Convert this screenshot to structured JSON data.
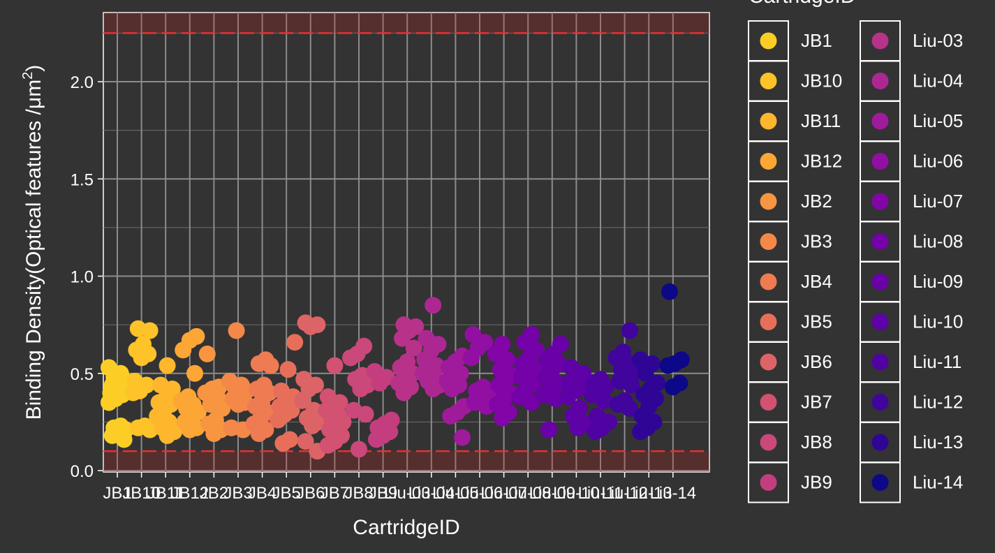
{
  "chart_data": {
    "type": "scatter",
    "xlabel": "CartridgeID",
    "ylabel_main": "Binding Density(Optical features /",
    "ylabel_unit": "μm",
    "ylabel_sup": "2",
    "ylabel_close": ")",
    "ylim": [
      0,
      2.35
    ],
    "yticks": [
      0.0,
      0.5,
      1.0,
      1.5,
      2.0
    ],
    "ytick_labels": [
      "0.0",
      "0.5",
      "1.0",
      "1.5",
      "2.0"
    ],
    "grid": true,
    "thresholds": {
      "lower": 0.1,
      "upper": 2.25
    },
    "legend_title": "CartridgeID",
    "legend_position": "right",
    "categories": [
      "JB1",
      "JB10",
      "JB11",
      "JB12",
      "JB2",
      "JB3",
      "JB4",
      "JB5",
      "JB6",
      "JB7",
      "JB8",
      "JB9",
      "Liu-03",
      "Liu-04",
      "Liu-05",
      "Liu-06",
      "Liu-07",
      "Liu-08",
      "Liu-09",
      "Liu-10",
      "Liu-11",
      "Liu-12",
      "Liu-13",
      "Liu-14"
    ],
    "colors": [
      "#FCCE25",
      "#FDC328",
      "#FEB72D",
      "#FCA636",
      "#F89540",
      "#F48849",
      "#EE7B51",
      "#E76F5A",
      "#DD6466",
      "#D35171",
      "#CA487A",
      "#C43E7F",
      "#B83289",
      "#AD2793",
      "#A01A9C",
      "#920FA3",
      "#8305A7",
      "#7501A8",
      "#6A00A8",
      "#5E01A6",
      "#5002A2",
      "#41049D",
      "#2F0596",
      "#0D0887"
    ],
    "series": [
      {
        "name": "JB1",
        "values": [
          0.53,
          0.5,
          0.48,
          0.46,
          0.45,
          0.44,
          0.42,
          0.41,
          0.4,
          0.39,
          0.37,
          0.35,
          0.23,
          0.22,
          0.21,
          0.2,
          0.18,
          0.16
        ]
      },
      {
        "name": "JB10",
        "values": [
          0.73,
          0.72,
          0.65,
          0.62,
          0.6,
          0.58,
          0.46,
          0.44,
          0.41,
          0.4,
          0.23,
          0.22,
          0.21
        ]
      },
      {
        "name": "JB11",
        "values": [
          0.54,
          0.44,
          0.42,
          0.37,
          0.35,
          0.34,
          0.31,
          0.28,
          0.25,
          0.22,
          0.2,
          0.18
        ]
      },
      {
        "name": "JB12",
        "values": [
          0.69,
          0.67,
          0.62,
          0.5,
          0.38,
          0.36,
          0.34,
          0.32,
          0.3,
          0.28,
          0.25,
          0.22,
          0.21
        ]
      },
      {
        "name": "JB2",
        "values": [
          0.6,
          0.43,
          0.42,
          0.4,
          0.38,
          0.34,
          0.32,
          0.26,
          0.24,
          0.21,
          0.19
        ]
      },
      {
        "name": "JB3",
        "values": [
          0.72,
          0.46,
          0.44,
          0.43,
          0.41,
          0.39,
          0.37,
          0.35,
          0.34,
          0.22,
          0.21
        ]
      },
      {
        "name": "JB4",
        "values": [
          0.57,
          0.55,
          0.54,
          0.44,
          0.42,
          0.4,
          0.36,
          0.33,
          0.3,
          0.27,
          0.24,
          0.21,
          0.19
        ]
      },
      {
        "name": "JB5",
        "values": [
          0.66,
          0.52,
          0.41,
          0.38,
          0.35,
          0.33,
          0.31,
          0.29,
          0.26,
          0.16,
          0.14
        ]
      },
      {
        "name": "JB6",
        "values": [
          0.76,
          0.75,
          0.74,
          0.47,
          0.44,
          0.42,
          0.36,
          0.31,
          0.27,
          0.25,
          0.23,
          0.15,
          0.1
        ]
      },
      {
        "name": "JB7",
        "values": [
          0.54,
          0.38,
          0.35,
          0.33,
          0.31,
          0.29,
          0.27,
          0.25,
          0.23,
          0.21,
          0.18,
          0.15,
          0.13
        ]
      },
      {
        "name": "JB8",
        "values": [
          0.64,
          0.6,
          0.58,
          0.49,
          0.47,
          0.44,
          0.42,
          0.31,
          0.29,
          0.11
        ]
      },
      {
        "name": "JB9",
        "values": [
          0.51,
          0.48,
          0.45,
          0.26,
          0.24,
          0.22,
          0.2,
          0.18,
          0.16
        ]
      },
      {
        "name": "Liu-03",
        "values": [
          0.75,
          0.74,
          0.72,
          0.68,
          0.63,
          0.56,
          0.53,
          0.5,
          0.47,
          0.45,
          0.43,
          0.4
        ]
      },
      {
        "name": "Liu-04",
        "values": [
          0.85,
          0.68,
          0.65,
          0.62,
          0.57,
          0.54,
          0.52,
          0.5,
          0.48,
          0.46,
          0.44,
          0.42
        ]
      },
      {
        "name": "Liu-05",
        "values": [
          0.59,
          0.56,
          0.53,
          0.5,
          0.48,
          0.46,
          0.44,
          0.42,
          0.33,
          0.3,
          0.28,
          0.17
        ]
      },
      {
        "name": "Liu-06",
        "values": [
          0.7,
          0.66,
          0.63,
          0.58,
          0.43,
          0.41,
          0.39,
          0.37,
          0.35,
          0.33
        ]
      },
      {
        "name": "Liu-07",
        "values": [
          0.65,
          0.6,
          0.57,
          0.52,
          0.49,
          0.47,
          0.44,
          0.4,
          0.37,
          0.34,
          0.3,
          0.27
        ]
      },
      {
        "name": "Liu-08",
        "values": [
          0.7,
          0.66,
          0.62,
          0.58,
          0.55,
          0.52,
          0.5,
          0.48,
          0.45,
          0.42,
          0.38,
          0.35
        ]
      },
      {
        "name": "Liu-09",
        "values": [
          0.65,
          0.6,
          0.57,
          0.55,
          0.52,
          0.48,
          0.45,
          0.42,
          0.39,
          0.37,
          0.21
        ]
      },
      {
        "name": "Liu-10",
        "values": [
          0.53,
          0.5,
          0.48,
          0.45,
          0.43,
          0.41,
          0.38,
          0.32,
          0.28,
          0.24,
          0.22
        ]
      },
      {
        "name": "Liu-11",
        "values": [
          0.47,
          0.45,
          0.43,
          0.41,
          0.39,
          0.36,
          0.28,
          0.25,
          0.22,
          0.2
        ]
      },
      {
        "name": "Liu-12",
        "values": [
          0.72,
          0.61,
          0.58,
          0.55,
          0.52,
          0.5,
          0.48,
          0.46,
          0.44,
          0.36,
          0.34,
          0.32
        ]
      },
      {
        "name": "Liu-13",
        "values": [
          0.57,
          0.55,
          0.5,
          0.45,
          0.42,
          0.39,
          0.37,
          0.33,
          0.28,
          0.25,
          0.22,
          0.2
        ]
      },
      {
        "name": "Liu-14",
        "values": [
          0.92,
          0.57,
          0.55,
          0.54,
          0.45,
          0.43
        ]
      }
    ]
  }
}
